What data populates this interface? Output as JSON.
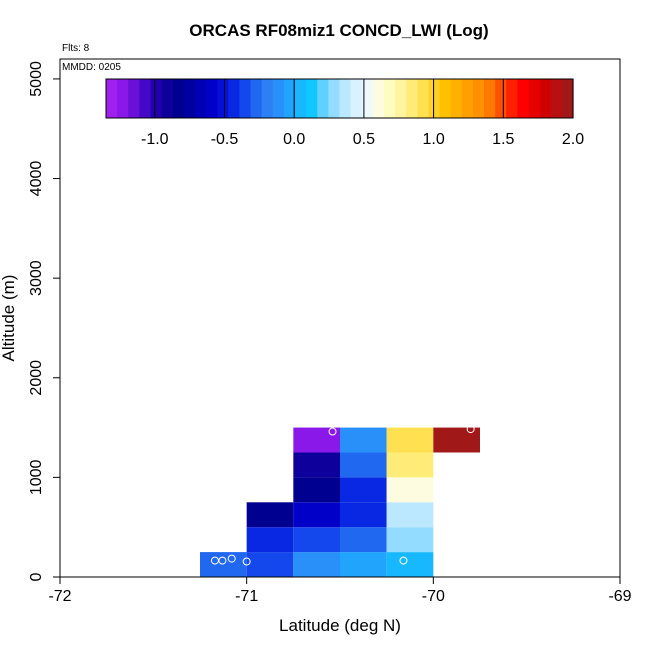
{
  "chart_data": {
    "type": "heatmap",
    "title": "ORCAS RF08miz1 CONCD_LWI (Log)",
    "xlabel": "Latitude (deg N)",
    "ylabel": "Altitude (m)",
    "xlim": [
      -72,
      -69
    ],
    "ylim": [
      0,
      5200
    ],
    "x_ticks": [
      -72,
      -71,
      -70,
      -69
    ],
    "x_tick_labels": [
      "-72",
      "-71",
      "-70",
      "-69"
    ],
    "y_ticks": [
      0,
      1000,
      2000,
      3000,
      4000,
      5000
    ],
    "y_tick_labels": [
      "0",
      "1000",
      "2000",
      "3000",
      "4000",
      "5000"
    ],
    "annotations": {
      "flights": "Flts: 8",
      "mmdd": "MMDD: 0205"
    },
    "colorbar": {
      "range": [
        -1.35,
        2.0
      ],
      "ticks": [
        -1.0,
        -0.5,
        0.0,
        0.5,
        1.0,
        1.5,
        2.0
      ],
      "tick_labels": [
        "-1.0",
        "-0.5",
        "0.0",
        "0.5",
        "1.0",
        "1.5",
        "2.0"
      ],
      "colors": [
        "#a020f0",
        "#8a18e8",
        "#6a10d8",
        "#4608c8",
        "#2200b0",
        "#0e009a",
        "#000090",
        "#0000a0",
        "#0000b4",
        "#0000c8",
        "#0410d8",
        "#0828e4",
        "#1448ec",
        "#2068f0",
        "#2c80f4",
        "#2890f8",
        "#20a4fc",
        "#18b8fe",
        "#10c8ff",
        "#60d0ff",
        "#94dcff",
        "#bce8ff",
        "#d8f2ff",
        "#ecfaff",
        "#fefce0",
        "#fffcc0",
        "#fff4a0",
        "#ffec78",
        "#ffe050",
        "#ffd028",
        "#ffc000",
        "#ffb000",
        "#ffa000",
        "#ff9000",
        "#ff7800",
        "#ff5000",
        "#ff2000",
        "#ff0000",
        "#e80000",
        "#d00000",
        "#b81010",
        "#a01818"
      ]
    },
    "cells": [
      {
        "lat": [
          -71.25,
          -71.0
        ],
        "alt": [
          0,
          250
        ],
        "value": -0.3
      },
      {
        "lat": [
          -71.0,
          -70.75
        ],
        "alt": [
          0,
          250
        ],
        "value": -0.35
      },
      {
        "lat": [
          -70.75,
          -70.5
        ],
        "alt": [
          0,
          250
        ],
        "value": -0.1
      },
      {
        "lat": [
          -70.5,
          -70.25
        ],
        "alt": [
          0,
          250
        ],
        "value": -0.05
      },
      {
        "lat": [
          -70.25,
          -70.0
        ],
        "alt": [
          0,
          250
        ],
        "value": 0.05
      },
      {
        "lat": [
          -71.0,
          -70.75
        ],
        "alt": [
          250,
          500
        ],
        "value": -0.4
      },
      {
        "lat": [
          -70.75,
          -70.5
        ],
        "alt": [
          250,
          500
        ],
        "value": -0.35
      },
      {
        "lat": [
          -70.5,
          -70.25
        ],
        "alt": [
          250,
          500
        ],
        "value": -0.25
      },
      {
        "lat": [
          -70.25,
          -70.0
        ],
        "alt": [
          250,
          500
        ],
        "value": 0.3
      },
      {
        "lat": [
          -71.0,
          -70.75
        ],
        "alt": [
          500,
          750
        ],
        "value": -0.8
      },
      {
        "lat": [
          -70.75,
          -70.5
        ],
        "alt": [
          500,
          750
        ],
        "value": -0.6
      },
      {
        "lat": [
          -70.5,
          -70.25
        ],
        "alt": [
          500,
          750
        ],
        "value": -0.42
      },
      {
        "lat": [
          -70.25,
          -70.0
        ],
        "alt": [
          500,
          750
        ],
        "value": 0.4
      },
      {
        "lat": [
          -70.75,
          -70.5
        ],
        "alt": [
          750,
          1000
        ],
        "value": -0.85
      },
      {
        "lat": [
          -70.5,
          -70.25
        ],
        "alt": [
          750,
          1000
        ],
        "value": -0.42
      },
      {
        "lat": [
          -70.25,
          -70.0
        ],
        "alt": [
          750,
          1000
        ],
        "value": 0.6
      },
      {
        "lat": [
          -70.75,
          -70.5
        ],
        "alt": [
          1000,
          1250
        ],
        "value": -0.95
      },
      {
        "lat": [
          -70.5,
          -70.25
        ],
        "alt": [
          1000,
          1250
        ],
        "value": -0.3
      },
      {
        "lat": [
          -70.25,
          -70.0
        ],
        "alt": [
          1000,
          1250
        ],
        "value": 0.85
      },
      {
        "lat": [
          -70.75,
          -70.5
        ],
        "alt": [
          1250,
          1500
        ],
        "value": -1.25
      },
      {
        "lat": [
          -70.5,
          -70.25
        ],
        "alt": [
          1250,
          1500
        ],
        "value": -0.08
      },
      {
        "lat": [
          -70.25,
          -70.0
        ],
        "alt": [
          1250,
          1500
        ],
        "value": 0.95
      },
      {
        "lat": [
          -70.0,
          -69.75
        ],
        "alt": [
          1250,
          1500
        ],
        "value": 1.95
      }
    ],
    "points": [
      {
        "lat": -71.17,
        "alt": 165
      },
      {
        "lat": -71.13,
        "alt": 165
      },
      {
        "lat": -71.08,
        "alt": 185
      },
      {
        "lat": -71.0,
        "alt": 155
      },
      {
        "lat": -70.16,
        "alt": 165
      },
      {
        "lat": -70.54,
        "alt": 1460
      },
      {
        "lat": -69.8,
        "alt": 1485
      }
    ]
  }
}
